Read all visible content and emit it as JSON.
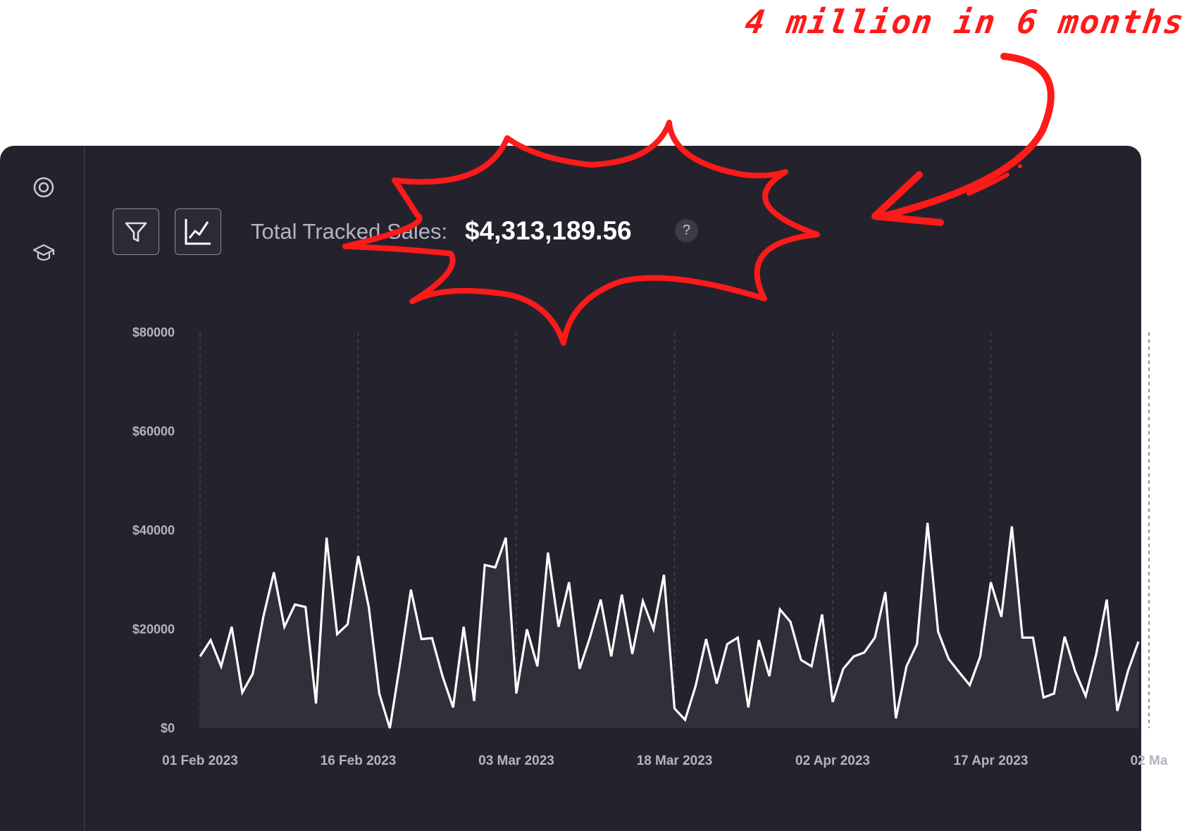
{
  "annotation": {
    "text": "4 million in 6 months"
  },
  "header": {
    "filter_icon": "filter-icon",
    "chart_icon": "line-chart-icon",
    "sales_label": "Total Tracked Sales:",
    "sales_value": "$4,313,189.56",
    "help": "?"
  },
  "sidebar": {
    "items": [
      {
        "icon": "target-icon"
      },
      {
        "icon": "graduation-cap-icon"
      }
    ]
  },
  "colors": {
    "accent": "#ff1a1a",
    "background": "#24232d",
    "line": "#ffffff",
    "area": "#302f3a"
  },
  "chart_data": {
    "type": "area",
    "xlabel": "",
    "ylabel": "",
    "ylim": [
      0,
      80000
    ],
    "y_ticks": [
      "$0",
      "$20000",
      "$40000",
      "$60000",
      "$80000"
    ],
    "x_ticks": [
      "01 Feb 2023",
      "16 Feb 2023",
      "03 Mar 2023",
      "18 Mar 2023",
      "02 Apr 2023",
      "17 Apr 2023",
      "02 Ma"
    ],
    "x_start": "2023-02-01",
    "grid": "vertical-dashed",
    "series": [
      {
        "name": "",
        "values": [
          14500,
          17800,
          12500,
          20500,
          7200,
          11000,
          22500,
          31500,
          20500,
          25000,
          24500,
          5000,
          38500,
          19000,
          21000,
          34800,
          24500,
          7000,
          0,
          13500,
          28000,
          18000,
          18200,
          10500,
          4200,
          20500,
          5500,
          33000,
          32500,
          38500,
          7000,
          20000,
          12500,
          35500,
          20500,
          29500,
          12000,
          18500,
          26000,
          14500,
          27000,
          15000,
          25700,
          20000,
          31000,
          4000,
          1700,
          8500,
          18000,
          9000,
          17000,
          18300,
          4200,
          17800,
          10500,
          24000,
          21500,
          13800,
          12500,
          23000,
          5300,
          12000,
          14500,
          15300,
          18300,
          27500,
          2000,
          12500,
          17000,
          41500,
          19500,
          14000,
          11300,
          8700,
          14500,
          29500,
          22500,
          40800,
          18300,
          18300,
          6200,
          7000,
          18500,
          11500,
          6500,
          15000,
          26000,
          3500,
          11500,
          17500
        ]
      }
    ]
  }
}
